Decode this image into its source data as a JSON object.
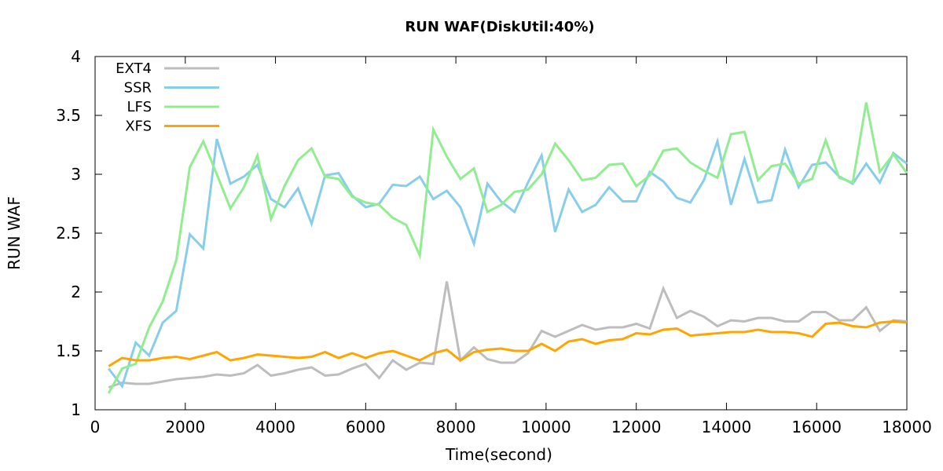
{
  "chart_data": {
    "type": "line",
    "title": "RUN WAF(DiskUtil:40%)",
    "xlabel": "Time(second)",
    "ylabel": "RUN WAF",
    "xlim": [
      0,
      18000
    ],
    "ylim": [
      1,
      4
    ],
    "xticks": [
      0,
      2000,
      4000,
      6000,
      8000,
      10000,
      12000,
      14000,
      16000,
      18000
    ],
    "yticks": [
      1,
      1.5,
      2,
      2.5,
      3,
      3.5,
      4
    ],
    "ytick_labels": [
      "1",
      "1.5",
      "2",
      "2.5",
      "3",
      "3.5",
      "4"
    ],
    "grid": false,
    "legend_position": "top-left",
    "series": [
      {
        "name": "EXT4",
        "color": "#bdbdbd",
        "x": [
          300,
          600,
          900,
          1200,
          1500,
          1800,
          2100,
          2400,
          2700,
          3000,
          3300,
          3600,
          3900,
          4200,
          4500,
          4800,
          5100,
          5400,
          5700,
          6000,
          6300,
          6600,
          6900,
          7200,
          7500,
          7800,
          8100,
          8400,
          8700,
          9000,
          9300,
          9600,
          9900,
          10200,
          10500,
          10800,
          11100,
          11400,
          11700,
          12000,
          12300,
          12600,
          12900,
          13200,
          13500,
          13800,
          14100,
          14400,
          14700,
          15000,
          15300,
          15600,
          15900,
          16200,
          16500,
          16800,
          17100,
          17400,
          17700,
          18000
        ],
        "y": [
          1.19,
          1.23,
          1.22,
          1.22,
          1.24,
          1.26,
          1.27,
          1.28,
          1.3,
          1.29,
          1.31,
          1.38,
          1.29,
          1.31,
          1.34,
          1.36,
          1.29,
          1.3,
          1.35,
          1.39,
          1.27,
          1.42,
          1.34,
          1.4,
          1.39,
          2.09,
          1.42,
          1.53,
          1.43,
          1.4,
          1.4,
          1.48,
          1.67,
          1.62,
          1.67,
          1.72,
          1.68,
          1.7,
          1.7,
          1.73,
          1.69,
          2.03,
          1.78,
          1.84,
          1.79,
          1.71,
          1.76,
          1.75,
          1.78,
          1.78,
          1.75,
          1.75,
          1.83,
          1.83,
          1.76,
          1.76,
          1.87,
          1.67,
          1.76,
          1.75
        ]
      },
      {
        "name": "SSR",
        "color": "#87ceeb",
        "x": [
          300,
          600,
          900,
          1200,
          1500,
          1800,
          2100,
          2400,
          2700,
          3000,
          3300,
          3600,
          3900,
          4200,
          4500,
          4800,
          5100,
          5400,
          5700,
          6000,
          6300,
          6600,
          6900,
          7200,
          7500,
          7800,
          8100,
          8400,
          8700,
          9000,
          9300,
          9600,
          9900,
          10200,
          10500,
          10800,
          11100,
          11400,
          11700,
          12000,
          12300,
          12600,
          12900,
          13200,
          13500,
          13800,
          14100,
          14400,
          14700,
          15000,
          15300,
          15600,
          15900,
          16200,
          16500,
          16800,
          17100,
          17400,
          17700,
          18000
        ],
        "y": [
          1.35,
          1.2,
          1.57,
          1.46,
          1.74,
          1.84,
          2.49,
          2.37,
          3.3,
          2.92,
          2.98,
          3.08,
          2.79,
          2.72,
          2.88,
          2.58,
          2.99,
          3.01,
          2.82,
          2.72,
          2.75,
          2.91,
          2.9,
          2.98,
          2.79,
          2.86,
          2.72,
          2.41,
          2.92,
          2.77,
          2.68,
          2.93,
          3.16,
          2.51,
          2.87,
          2.68,
          2.74,
          2.89,
          2.77,
          2.77,
          3.02,
          2.94,
          2.8,
          2.76,
          2.95,
          3.28,
          2.74,
          3.13,
          2.76,
          2.78,
          3.21,
          2.89,
          3.08,
          3.1,
          2.98,
          2.92,
          3.09,
          2.93,
          3.18,
          3.09
        ]
      },
      {
        "name": "LFS",
        "color": "#90ee90",
        "x": [
          300,
          600,
          900,
          1200,
          1500,
          1800,
          2100,
          2400,
          2700,
          3000,
          3300,
          3600,
          3900,
          4200,
          4500,
          4800,
          5100,
          5400,
          5700,
          6000,
          6300,
          6600,
          6900,
          7200,
          7500,
          7800,
          8100,
          8400,
          8700,
          9000,
          9300,
          9600,
          9900,
          10200,
          10500,
          10800,
          11100,
          11400,
          11700,
          12000,
          12300,
          12600,
          12900,
          13200,
          13500,
          13800,
          14100,
          14400,
          14700,
          15000,
          15300,
          15600,
          15900,
          16200,
          16500,
          16800,
          17100,
          17400,
          17700,
          18000
        ],
        "y": [
          1.14,
          1.35,
          1.39,
          1.7,
          1.92,
          2.27,
          3.06,
          3.28,
          3.0,
          2.71,
          2.89,
          3.16,
          2.62,
          2.9,
          3.12,
          3.22,
          2.98,
          2.96,
          2.81,
          2.76,
          2.74,
          2.63,
          2.57,
          2.31,
          3.38,
          3.15,
          2.96,
          3.05,
          2.68,
          2.74,
          2.85,
          2.87,
          3.0,
          3.26,
          3.12,
          2.95,
          2.97,
          3.08,
          3.09,
          2.9,
          2.99,
          3.2,
          3.22,
          3.1,
          3.03,
          2.97,
          3.34,
          3.36,
          2.95,
          3.07,
          3.09,
          2.92,
          2.96,
          3.29,
          2.97,
          2.93,
          3.61,
          3.02,
          3.17,
          3.01
        ]
      },
      {
        "name": "XFS",
        "color": "#ffa500",
        "x": [
          300,
          600,
          900,
          1200,
          1500,
          1800,
          2100,
          2400,
          2700,
          3000,
          3300,
          3600,
          3900,
          4200,
          4500,
          4800,
          5100,
          5400,
          5700,
          6000,
          6300,
          6600,
          6900,
          7200,
          7500,
          7800,
          8100,
          8400,
          8700,
          9000,
          9300,
          9600,
          9900,
          10200,
          10500,
          10800,
          11100,
          11400,
          11700,
          12000,
          12300,
          12600,
          12900,
          13200,
          13500,
          13800,
          14100,
          14400,
          14700,
          15000,
          15300,
          15600,
          15900,
          16200,
          16500,
          16800,
          17100,
          17400,
          17700,
          18000
        ],
        "y": [
          1.37,
          1.44,
          1.42,
          1.42,
          1.44,
          1.45,
          1.43,
          1.46,
          1.49,
          1.42,
          1.44,
          1.47,
          1.46,
          1.45,
          1.44,
          1.45,
          1.49,
          1.44,
          1.48,
          1.44,
          1.48,
          1.5,
          1.46,
          1.42,
          1.48,
          1.51,
          1.42,
          1.49,
          1.51,
          1.52,
          1.5,
          1.5,
          1.56,
          1.5,
          1.58,
          1.6,
          1.56,
          1.59,
          1.6,
          1.65,
          1.64,
          1.68,
          1.69,
          1.63,
          1.64,
          1.65,
          1.66,
          1.66,
          1.68,
          1.66,
          1.66,
          1.65,
          1.62,
          1.73,
          1.74,
          1.71,
          1.7,
          1.74,
          1.75,
          1.74
        ]
      }
    ]
  }
}
